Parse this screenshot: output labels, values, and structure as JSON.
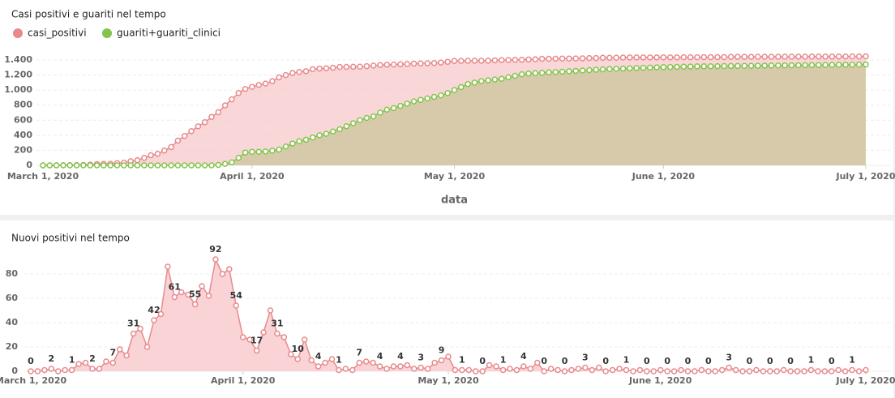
{
  "chart_data": [
    {
      "type": "area",
      "title": "Casi positivi e guariti nel tempo",
      "xlabel": "data",
      "legend": "top-left",
      "x": [
        "2020-03-01",
        "2020-03-02",
        "2020-03-03",
        "2020-03-04",
        "2020-03-05",
        "2020-03-06",
        "2020-03-07",
        "2020-03-08",
        "2020-03-09",
        "2020-03-10",
        "2020-03-11",
        "2020-03-12",
        "2020-03-13",
        "2020-03-14",
        "2020-03-15",
        "2020-03-16",
        "2020-03-17",
        "2020-03-18",
        "2020-03-19",
        "2020-03-20",
        "2020-03-21",
        "2020-03-22",
        "2020-03-23",
        "2020-03-24",
        "2020-03-25",
        "2020-03-26",
        "2020-03-27",
        "2020-03-28",
        "2020-03-29",
        "2020-03-30",
        "2020-03-31",
        "2020-04-01",
        "2020-04-02",
        "2020-04-03",
        "2020-04-04",
        "2020-04-05",
        "2020-04-06",
        "2020-04-07",
        "2020-04-08",
        "2020-04-09",
        "2020-04-10",
        "2020-04-11",
        "2020-04-12",
        "2020-04-13",
        "2020-04-14",
        "2020-04-15",
        "2020-04-16",
        "2020-04-17",
        "2020-04-18",
        "2020-04-19",
        "2020-04-20",
        "2020-04-21",
        "2020-04-22",
        "2020-04-23",
        "2020-04-24",
        "2020-04-25",
        "2020-04-26",
        "2020-04-27",
        "2020-04-28",
        "2020-04-29",
        "2020-04-30",
        "2020-05-01",
        "2020-05-02",
        "2020-05-03",
        "2020-05-04",
        "2020-05-05",
        "2020-05-06",
        "2020-05-07",
        "2020-05-08",
        "2020-05-09",
        "2020-05-10",
        "2020-05-11",
        "2020-05-12",
        "2020-05-13",
        "2020-05-14",
        "2020-05-15",
        "2020-05-16",
        "2020-05-17",
        "2020-05-18",
        "2020-05-19",
        "2020-05-20",
        "2020-05-21",
        "2020-05-22",
        "2020-05-23",
        "2020-05-24",
        "2020-05-25",
        "2020-05-26",
        "2020-05-27",
        "2020-05-28",
        "2020-05-29",
        "2020-05-30",
        "2020-05-31",
        "2020-06-01",
        "2020-06-02",
        "2020-06-03",
        "2020-06-04",
        "2020-06-05",
        "2020-06-06",
        "2020-06-07",
        "2020-06-08",
        "2020-06-09",
        "2020-06-10",
        "2020-06-11",
        "2020-06-12",
        "2020-06-13",
        "2020-06-14",
        "2020-06-15",
        "2020-06-16",
        "2020-06-17",
        "2020-06-18",
        "2020-06-19",
        "2020-06-20",
        "2020-06-21",
        "2020-06-22",
        "2020-06-23",
        "2020-06-24",
        "2020-06-25",
        "2020-06-26",
        "2020-06-27",
        "2020-06-28",
        "2020-06-29",
        "2020-06-30",
        "2020-07-01"
      ],
      "series": [
        {
          "name": "casi_positivi",
          "color": "#e88a8c",
          "fill": "#f7c9cc",
          "values": [
            0,
            0,
            1,
            3,
            3,
            4,
            5,
            11,
            18,
            20,
            22,
            30,
            37,
            55,
            68,
            99,
            134,
            154,
            196,
            243,
            329,
            390,
            455,
            518,
            573,
            643,
            705,
            797,
            877,
            961,
            1015,
            1043,
            1069,
            1086,
            1118,
            1168,
            1199,
            1227,
            1241,
            1251,
            1277,
            1286,
            1290,
            1297,
            1307,
            1308,
            1310,
            1311,
            1318,
            1326,
            1333,
            1337,
            1339,
            1343,
            1347,
            1352,
            1354,
            1357,
            1359,
            1366,
            1375,
            1387,
            1388,
            1389,
            1390,
            1390,
            1390,
            1395,
            1399,
            1400,
            1402,
            1403,
            1407,
            1409,
            1416,
            1416,
            1418,
            1419,
            1419,
            1420,
            1422,
            1425,
            1426,
            1429,
            1429,
            1430,
            1432,
            1433,
            1433,
            1434,
            1434,
            1434,
            1435,
            1435,
            1435,
            1436,
            1436,
            1436,
            1437,
            1437,
            1437,
            1438,
            1441,
            1442,
            1442,
            1442,
            1443,
            1443,
            1443,
            1443,
            1444,
            1444,
            1444,
            1444,
            1445,
            1445,
            1445,
            1445,
            1446,
            1446,
            1447,
            1447,
            1448
          ]
        },
        {
          "name": "guariti+guariti_clinici",
          "color": "#84c44c",
          "fill": "#c9c69a",
          "values": [
            0,
            0,
            0,
            0,
            0,
            0,
            0,
            0,
            0,
            0,
            0,
            0,
            0,
            0,
            0,
            0,
            0,
            0,
            0,
            0,
            0,
            0,
            0,
            0,
            0,
            0,
            5,
            20,
            40,
            100,
            170,
            180,
            180,
            185,
            195,
            210,
            250,
            290,
            320,
            340,
            370,
            400,
            420,
            450,
            480,
            520,
            560,
            600,
            630,
            650,
            700,
            740,
            760,
            790,
            820,
            850,
            870,
            890,
            910,
            930,
            960,
            1000,
            1040,
            1080,
            1100,
            1120,
            1130,
            1140,
            1150,
            1170,
            1190,
            1210,
            1220,
            1225,
            1230,
            1235,
            1240,
            1245,
            1250,
            1255,
            1260,
            1265,
            1270,
            1275,
            1280,
            1283,
            1286,
            1290,
            1293,
            1296,
            1299,
            1302,
            1305,
            1307,
            1309,
            1311,
            1313,
            1315,
            1316,
            1317,
            1318,
            1319,
            1320,
            1321,
            1322,
            1323,
            1324,
            1325,
            1326,
            1327,
            1328,
            1329,
            1330,
            1331,
            1332,
            1333,
            1334,
            1335,
            1336,
            1337,
            1338,
            1339,
            1340
          ]
        }
      ],
      "xlim": [
        "2020-03-01",
        "2020-07-01"
      ],
      "xticks": [
        {
          "value": "2020-03-01",
          "label": "March 1, 2020"
        },
        {
          "value": "2020-04-01",
          "label": "April 1, 2020"
        },
        {
          "value": "2020-05-01",
          "label": "May 1, 2020"
        },
        {
          "value": "2020-06-01",
          "label": "June 1, 2020"
        },
        {
          "value": "2020-07-01",
          "label": "July 1, 2020"
        }
      ],
      "ylim": [
        0,
        1500
      ],
      "yticks": [
        0,
        200,
        400,
        600,
        800,
        {
          "value": 1000,
          "label": "1.000"
        },
        {
          "value": 1200,
          "label": "1.200"
        },
        {
          "value": 1400,
          "label": "1.400"
        }
      ],
      "grid": true
    },
    {
      "type": "area",
      "title": "Nuovi positivi nel tempo",
      "x": [
        "2020-03-01",
        "2020-03-02",
        "2020-03-03",
        "2020-03-04",
        "2020-03-05",
        "2020-03-06",
        "2020-03-07",
        "2020-03-08",
        "2020-03-09",
        "2020-03-10",
        "2020-03-11",
        "2020-03-12",
        "2020-03-13",
        "2020-03-14",
        "2020-03-15",
        "2020-03-16",
        "2020-03-17",
        "2020-03-18",
        "2020-03-19",
        "2020-03-20",
        "2020-03-21",
        "2020-03-22",
        "2020-03-23",
        "2020-03-24",
        "2020-03-25",
        "2020-03-26",
        "2020-03-27",
        "2020-03-28",
        "2020-03-29",
        "2020-03-30",
        "2020-03-31",
        "2020-04-01",
        "2020-04-02",
        "2020-04-03",
        "2020-04-04",
        "2020-04-05",
        "2020-04-06",
        "2020-04-07",
        "2020-04-08",
        "2020-04-09",
        "2020-04-10",
        "2020-04-11",
        "2020-04-12",
        "2020-04-13",
        "2020-04-14",
        "2020-04-15",
        "2020-04-16",
        "2020-04-17",
        "2020-04-18",
        "2020-04-19",
        "2020-04-20",
        "2020-04-21",
        "2020-04-22",
        "2020-04-23",
        "2020-04-24",
        "2020-04-25",
        "2020-04-26",
        "2020-04-27",
        "2020-04-28",
        "2020-04-29",
        "2020-04-30",
        "2020-05-01",
        "2020-05-02",
        "2020-05-03",
        "2020-05-04",
        "2020-05-05",
        "2020-05-06",
        "2020-05-07",
        "2020-05-08",
        "2020-05-09",
        "2020-05-10",
        "2020-05-11",
        "2020-05-12",
        "2020-05-13",
        "2020-05-14",
        "2020-05-15",
        "2020-05-16",
        "2020-05-17",
        "2020-05-18",
        "2020-05-19",
        "2020-05-20",
        "2020-05-21",
        "2020-05-22",
        "2020-05-23",
        "2020-05-24",
        "2020-05-25",
        "2020-05-26",
        "2020-05-27",
        "2020-05-28",
        "2020-05-29",
        "2020-05-30",
        "2020-05-31",
        "2020-06-01",
        "2020-06-02",
        "2020-06-03",
        "2020-06-04",
        "2020-06-05",
        "2020-06-06",
        "2020-06-07",
        "2020-06-08",
        "2020-06-09",
        "2020-06-10",
        "2020-06-11",
        "2020-06-12",
        "2020-06-13",
        "2020-06-14",
        "2020-06-15",
        "2020-06-16",
        "2020-06-17",
        "2020-06-18",
        "2020-06-19",
        "2020-06-20",
        "2020-06-21",
        "2020-06-22",
        "2020-06-23",
        "2020-06-24",
        "2020-06-25",
        "2020-06-26",
        "2020-06-27",
        "2020-06-28",
        "2020-06-29",
        "2020-06-30",
        "2020-07-01"
      ],
      "series": [
        {
          "color": "#e88a8c",
          "fill": "#f9d3d6",
          "values": [
            0,
            0,
            1,
            2,
            0,
            1,
            1,
            6,
            7,
            2,
            2,
            8,
            7,
            18,
            13,
            31,
            35,
            20,
            42,
            47,
            86,
            61,
            65,
            63,
            55,
            70,
            62,
            92,
            80,
            84,
            54,
            28,
            26,
            17,
            32,
            50,
            31,
            28,
            14,
            10,
            26,
            9,
            4,
            7,
            10,
            1,
            2,
            1,
            7,
            8,
            7,
            4,
            2,
            4,
            4,
            5,
            2,
            3,
            2,
            7,
            9,
            12,
            1,
            1,
            1,
            0,
            0,
            5,
            4,
            1,
            2,
            1,
            4,
            2,
            7,
            0,
            2,
            1,
            0,
            1,
            2,
            3,
            1,
            3,
            0,
            1,
            2,
            1,
            0,
            1,
            0,
            0,
            1,
            0,
            0,
            1,
            0,
            0,
            1,
            0,
            0,
            1,
            3,
            1,
            0,
            0,
            1,
            0,
            0,
            0,
            1,
            0,
            0,
            0,
            1,
            0,
            0,
            0,
            1,
            0,
            1,
            0,
            1
          ]
        }
      ],
      "xlim": [
        "2020-03-01",
        "2020-07-01"
      ],
      "xticks": [
        {
          "value": "2020-03-01",
          "label": "March 1, 2020"
        },
        {
          "value": "2020-04-01",
          "label": "April 1, 2020"
        },
        {
          "value": "2020-05-01",
          "label": "May 1, 2020"
        },
        {
          "value": "2020-06-01",
          "label": "June 1, 2020"
        },
        {
          "value": "2020-07-01",
          "label": "July 1, 2020"
        }
      ],
      "ylim": [
        0,
        100
      ],
      "yticks": [
        0,
        20,
        40,
        60,
        80
      ],
      "grid": true
    }
  ]
}
